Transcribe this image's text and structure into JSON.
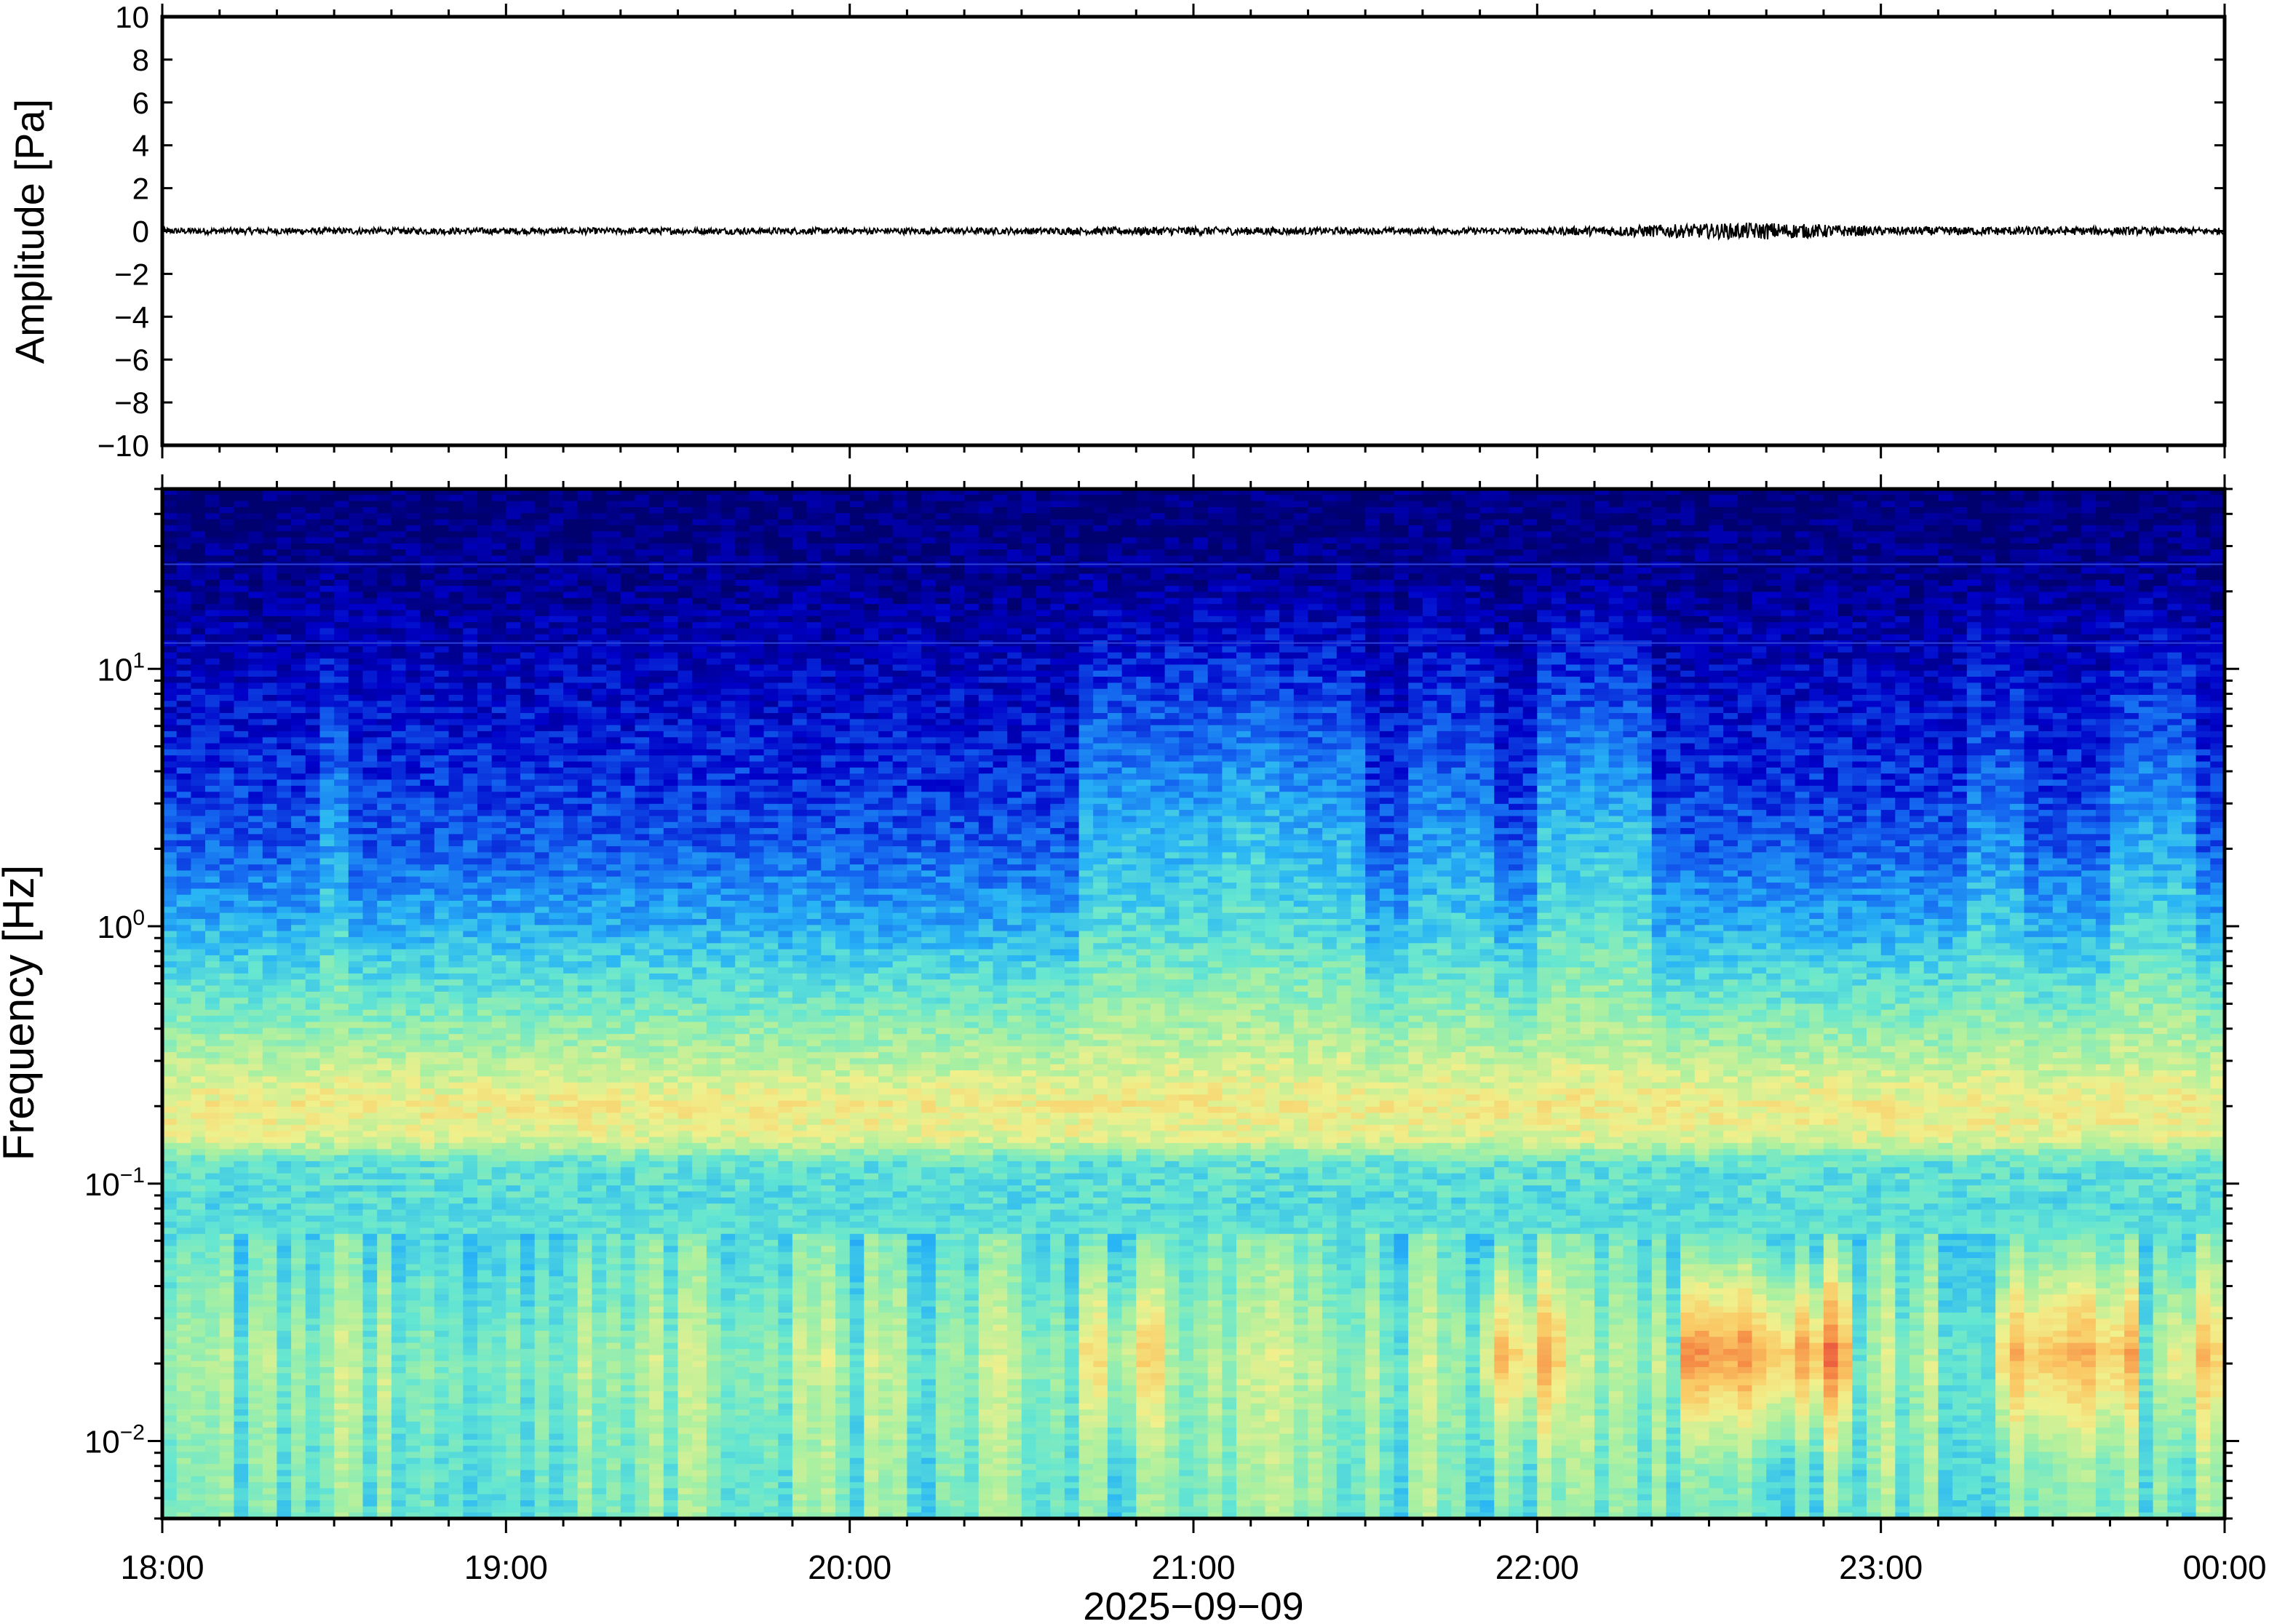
{
  "chart_data": [
    {
      "type": "line",
      "panel": "waveform",
      "ylabel": "Amplitude [Pa]",
      "ylim": [
        -10,
        10
      ],
      "y_ticks": [
        10,
        8,
        6,
        4,
        2,
        0,
        -2,
        -4,
        -6,
        -8,
        -10
      ],
      "y_tick_labels": [
        "10",
        "8",
        "6",
        "4",
        "2",
        "0",
        "−2",
        "−4",
        "−6",
        "−8",
        "−10"
      ],
      "xlim": [
        "2025-09-09 18:00",
        "2025-09-10 00:00"
      ],
      "grid": false,
      "series": [
        {
          "color": "#000000",
          "description_values": "near-zero pressure trace",
          "x": [
            "18:00",
            "18:30",
            "19:00",
            "19:30",
            "20:00",
            "20:30",
            "21:00",
            "21:30",
            "22:00",
            "22:30",
            "22:40",
            "22:50",
            "23:00",
            "23:30",
            "00:00"
          ],
          "y": [
            0,
            0,
            0,
            0,
            0,
            0,
            0,
            0,
            0,
            0,
            0,
            0,
            0,
            0,
            0
          ],
          "envelope": [
            0.15,
            0.15,
            0.15,
            0.15,
            0.15,
            0.15,
            0.2,
            0.15,
            0.15,
            0.35,
            0.4,
            0.3,
            0.2,
            0.2,
            0.15
          ]
        }
      ]
    },
    {
      "type": "heatmap",
      "panel": "spectrogram",
      "ylabel": "Frequency [Hz]",
      "y_scale": "log",
      "ylim": [
        0.005,
        50
      ],
      "y_ticks": [
        10,
        1,
        0.1,
        0.01
      ],
      "y_tick_labels": [
        {
          "base": "10",
          "exp": "1"
        },
        {
          "base": "10",
          "exp": "0"
        },
        {
          "base": "10",
          "exp": "−1"
        },
        {
          "base": "10",
          "exp": "−2"
        }
      ],
      "xlabel": "2025−09−09",
      "x_tick_labels": [
        "18:00",
        "19:00",
        "20:00",
        "21:00",
        "22:00",
        "23:00",
        "00:00"
      ],
      "xlim": [
        "2025-09-09 18:00",
        "2025-09-10 00:00"
      ],
      "colormap": [
        "#00006e",
        "#0000c8",
        "#1464f0",
        "#28b4f5",
        "#64e6d2",
        "#aaf0a0",
        "#f0f08c",
        "#fac864",
        "#f58c46",
        "#e6463c"
      ],
      "colormap_note": "relative power, low (dark blue) to high (red)",
      "power_profile_by_frequency": [
        {
          "freq_hz": 40,
          "level": 0.02
        },
        {
          "freq_hz": 20,
          "level": 0.05
        },
        {
          "freq_hz": 10,
          "level": 0.1
        },
        {
          "freq_hz": 4,
          "level": 0.16
        },
        {
          "freq_hz": 2,
          "level": 0.22
        },
        {
          "freq_hz": 1,
          "level": 0.33
        },
        {
          "freq_hz": 0.5,
          "level": 0.47
        },
        {
          "freq_hz": 0.3,
          "level": 0.58
        },
        {
          "freq_hz": 0.2,
          "level": 0.68
        },
        {
          "freq_hz": 0.15,
          "level": 0.64
        },
        {
          "freq_hz": 0.12,
          "level": 0.44
        },
        {
          "freq_hz": 0.08,
          "level": 0.42
        },
        {
          "freq_hz": 0.04,
          "level": 0.48
        },
        {
          "freq_hz": 0.02,
          "level": 0.54
        },
        {
          "freq_hz": 0.01,
          "level": 0.5
        },
        {
          "freq_hz": 0.005,
          "level": 0.48
        }
      ],
      "broadband_bursts": [
        {
          "start": "18:28",
          "end": "18:33",
          "strength": 0.1
        },
        {
          "start": "20:40",
          "end": "21:05",
          "strength": 0.14
        },
        {
          "start": "21:05",
          "end": "21:15",
          "strength": 0.17
        },
        {
          "start": "21:15",
          "end": "21:30",
          "strength": 0.13
        },
        {
          "start": "21:38",
          "end": "21:52",
          "strength": 0.09
        },
        {
          "start": "22:00",
          "end": "22:20",
          "strength": 0.16
        },
        {
          "start": "23:15",
          "end": "23:25",
          "strength": 0.08
        },
        {
          "start": "23:40",
          "end": "23:55",
          "strength": 0.12
        }
      ],
      "low_frequency_events": [
        {
          "start": "20:40",
          "end": "20:55",
          "strength": 0.14
        },
        {
          "start": "21:50",
          "end": "22:05",
          "strength": 0.22
        },
        {
          "start": "22:25",
          "end": "22:55",
          "strength": 0.32
        },
        {
          "start": "23:20",
          "end": "23:45",
          "strength": 0.22
        },
        {
          "start": "23:50",
          "end": "00:00",
          "strength": 0.16
        }
      ]
    }
  ]
}
